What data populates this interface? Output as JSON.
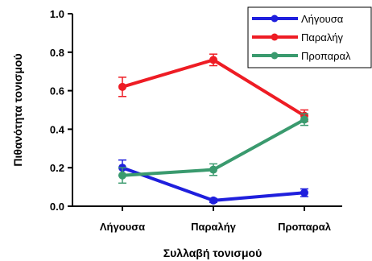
{
  "chart_data": {
    "type": "line",
    "xlabel": "Συλλαβή τονισμού",
    "ylabel": "Πιθανότητα τονισμού",
    "categories": [
      "Λήγουσα",
      "Παραλήγ",
      "Προπαραλ"
    ],
    "ylim": [
      0,
      1
    ],
    "yticks": [
      "0.0",
      "0.2",
      "0.4",
      "0.6",
      "0.8",
      "1.0"
    ],
    "grid": false,
    "legend_position": "top-right",
    "series": [
      {
        "name": "Λήγουσα",
        "color": "#1f1fdd",
        "values": [
          0.2,
          0.03,
          0.07
        ],
        "errors": [
          0.04,
          0.01,
          0.02
        ]
      },
      {
        "name": "Παραλήγ",
        "color": "#ee1c24",
        "values": [
          0.62,
          0.76,
          0.47
        ],
        "errors": [
          0.05,
          0.03,
          0.03
        ]
      },
      {
        "name": "Προπαραλ",
        "color": "#3a9a6e",
        "values": [
          0.16,
          0.19,
          0.45
        ],
        "errors": [
          0.04,
          0.03,
          0.03
        ]
      }
    ]
  }
}
